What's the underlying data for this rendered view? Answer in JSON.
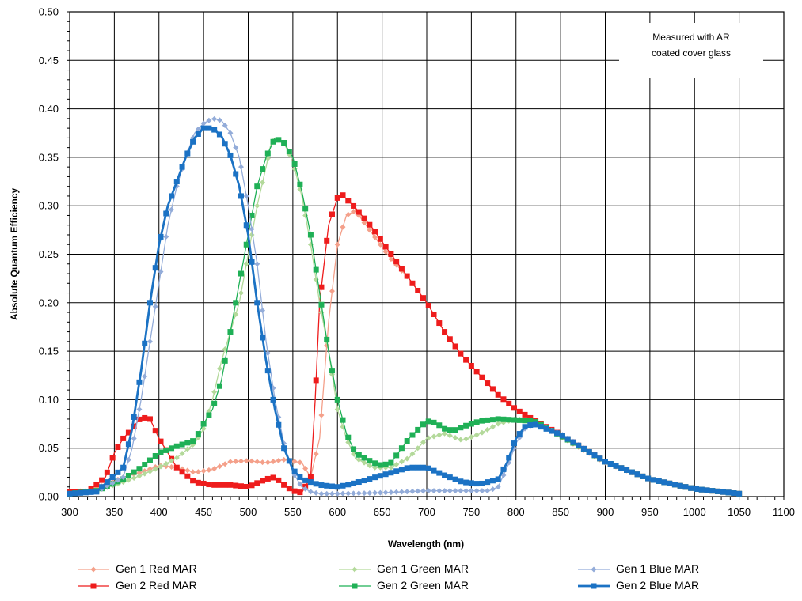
{
  "chart_data": {
    "type": "line",
    "title": "",
    "xlabel": "Wavelength (nm)",
    "ylabel": "Absolute Quantum Efficiency",
    "xlim": [
      300,
      1100
    ],
    "ylim": [
      0,
      0.5
    ],
    "xticks": [
      300,
      350,
      400,
      450,
      500,
      550,
      600,
      650,
      700,
      750,
      800,
      850,
      900,
      950,
      1000,
      1050,
      1100
    ],
    "yticks": [
      0.0,
      0.05,
      0.1,
      0.15,
      0.2,
      0.25,
      0.3,
      0.35,
      0.4,
      0.45,
      0.5
    ],
    "xtick_labels": [
      "300",
      "350",
      "400",
      "450",
      "500",
      "550",
      "600",
      "650",
      "700",
      "750",
      "800",
      "850",
      "900",
      "950",
      "1000",
      "1050",
      "1100"
    ],
    "ytick_labels": [
      "0.00",
      "0.05",
      "0.10",
      "0.15",
      "0.20",
      "0.25",
      "0.30",
      "0.35",
      "0.40",
      "0.45",
      "0.50"
    ],
    "grid": true,
    "legend_position": "bottom",
    "annotation": [
      "Measured with AR",
      "coated cover glass"
    ],
    "series": [
      {
        "name": "Gen 1 Red MAR",
        "color": "#f4a08a",
        "marker": "diamond",
        "line_width": 1.3,
        "x": [
          300,
          320,
          340,
          360,
          380,
          400,
          420,
          440,
          460,
          480,
          500,
          520,
          540,
          560,
          570,
          580,
          590,
          600,
          610,
          620,
          640,
          660,
          680,
          700,
          720,
          740,
          760,
          780,
          800,
          820,
          850,
          900,
          950,
          1000,
          1050
        ],
        "y": [
          0.005,
          0.006,
          0.012,
          0.02,
          0.025,
          0.032,
          0.03,
          0.025,
          0.028,
          0.036,
          0.037,
          0.035,
          0.038,
          0.035,
          0.02,
          0.06,
          0.18,
          0.26,
          0.29,
          0.295,
          0.27,
          0.245,
          0.225,
          0.2,
          0.17,
          0.145,
          0.125,
          0.105,
          0.09,
          0.078,
          0.062,
          0.035,
          0.018,
          0.008,
          0.003
        ]
      },
      {
        "name": "Gen 2 Red MAR",
        "color": "#ee1c1c",
        "marker": "square",
        "line_width": 1.3,
        "x": [
          300,
          320,
          340,
          350,
          360,
          370,
          380,
          390,
          400,
          420,
          440,
          460,
          480,
          500,
          520,
          530,
          540,
          550,
          560,
          570,
          575,
          580,
          590,
          600,
          605,
          610,
          620,
          640,
          660,
          680,
          700,
          720,
          740,
          760,
          780,
          800,
          820,
          850,
          900,
          950,
          1000,
          1050
        ],
        "y": [
          0.005,
          0.005,
          0.02,
          0.045,
          0.06,
          0.07,
          0.082,
          0.08,
          0.06,
          0.03,
          0.015,
          0.012,
          0.012,
          0.01,
          0.018,
          0.02,
          0.012,
          0.006,
          0.004,
          0.02,
          0.1,
          0.2,
          0.28,
          0.308,
          0.312,
          0.307,
          0.298,
          0.276,
          0.25,
          0.225,
          0.2,
          0.17,
          0.145,
          0.125,
          0.105,
          0.09,
          0.079,
          0.064,
          0.036,
          0.018,
          0.008,
          0.003
        ]
      },
      {
        "name": "Gen 1 Green MAR",
        "color": "#b3d99a",
        "marker": "diamond",
        "line_width": 1.3,
        "x": [
          300,
          330,
          360,
          380,
          400,
          420,
          440,
          450,
          460,
          470,
          480,
          490,
          500,
          510,
          520,
          525,
          530,
          540,
          550,
          560,
          570,
          580,
          590,
          600,
          610,
          620,
          640,
          660,
          680,
          700,
          720,
          740,
          760,
          780,
          800,
          820,
          850,
          900,
          950,
          1000,
          1050
        ],
        "y": [
          0.003,
          0.006,
          0.015,
          0.022,
          0.03,
          0.04,
          0.055,
          0.07,
          0.1,
          0.14,
          0.17,
          0.2,
          0.25,
          0.3,
          0.34,
          0.362,
          0.37,
          0.365,
          0.345,
          0.31,
          0.26,
          0.2,
          0.15,
          0.09,
          0.06,
          0.04,
          0.03,
          0.03,
          0.04,
          0.06,
          0.065,
          0.058,
          0.065,
          0.075,
          0.08,
          0.078,
          0.063,
          0.036,
          0.018,
          0.008,
          0.003
        ]
      },
      {
        "name": "Gen 2 Green MAR",
        "color": "#1fb056",
        "marker": "square",
        "line_width": 1.3,
        "x": [
          300,
          330,
          360,
          380,
          400,
          420,
          440,
          450,
          460,
          470,
          480,
          490,
          500,
          510,
          520,
          530,
          540,
          550,
          560,
          570,
          580,
          590,
          600,
          610,
          620,
          630,
          640,
          650,
          660,
          680,
          700,
          710,
          720,
          730,
          740,
          760,
          780,
          800,
          820,
          850,
          900,
          950,
          1000,
          1050
        ],
        "y": [
          0.003,
          0.006,
          0.018,
          0.03,
          0.045,
          0.052,
          0.058,
          0.075,
          0.09,
          0.12,
          0.17,
          0.22,
          0.27,
          0.32,
          0.35,
          0.37,
          0.365,
          0.35,
          0.315,
          0.27,
          0.21,
          0.15,
          0.1,
          0.065,
          0.045,
          0.04,
          0.035,
          0.032,
          0.035,
          0.06,
          0.078,
          0.076,
          0.07,
          0.068,
          0.072,
          0.078,
          0.08,
          0.079,
          0.078,
          0.063,
          0.036,
          0.018,
          0.008,
          0.003
        ]
      },
      {
        "name": "Gen 1 Blue MAR",
        "color": "#93acd9",
        "marker": "diamond",
        "line_width": 1.3,
        "x": [
          300,
          330,
          360,
          370,
          380,
          390,
          400,
          410,
          420,
          430,
          440,
          450,
          460,
          470,
          480,
          490,
          500,
          510,
          520,
          530,
          540,
          550,
          560,
          570,
          580,
          600,
          650,
          700,
          750,
          770,
          780,
          790,
          800,
          810,
          820,
          850,
          900,
          950,
          1000,
          1050
        ],
        "y": [
          0.003,
          0.005,
          0.02,
          0.05,
          0.1,
          0.16,
          0.22,
          0.28,
          0.32,
          0.35,
          0.375,
          0.385,
          0.39,
          0.388,
          0.375,
          0.35,
          0.3,
          0.24,
          0.16,
          0.1,
          0.055,
          0.025,
          0.01,
          0.005,
          0.003,
          0.003,
          0.004,
          0.006,
          0.006,
          0.006,
          0.01,
          0.03,
          0.055,
          0.07,
          0.075,
          0.065,
          0.036,
          0.018,
          0.008,
          0.003
        ]
      },
      {
        "name": "Gen 2 Blue MAR",
        "color": "#1b72c4",
        "marker": "square",
        "line_width": 2.8,
        "x": [
          300,
          330,
          360,
          370,
          380,
          390,
          400,
          410,
          420,
          430,
          440,
          450,
          460,
          470,
          480,
          490,
          500,
          510,
          520,
          530,
          540,
          550,
          560,
          580,
          600,
          620,
          650,
          680,
          700,
          720,
          740,
          760,
          780,
          790,
          800,
          810,
          820,
          850,
          900,
          950,
          1000,
          1050
        ],
        "y": [
          0.003,
          0.005,
          0.03,
          0.07,
          0.13,
          0.2,
          0.26,
          0.3,
          0.325,
          0.35,
          0.37,
          0.38,
          0.38,
          0.372,
          0.352,
          0.32,
          0.27,
          0.2,
          0.14,
          0.09,
          0.05,
          0.028,
          0.018,
          0.012,
          0.01,
          0.014,
          0.022,
          0.03,
          0.03,
          0.022,
          0.015,
          0.013,
          0.018,
          0.035,
          0.06,
          0.072,
          0.075,
          0.064,
          0.036,
          0.018,
          0.008,
          0.003
        ]
      }
    ]
  }
}
